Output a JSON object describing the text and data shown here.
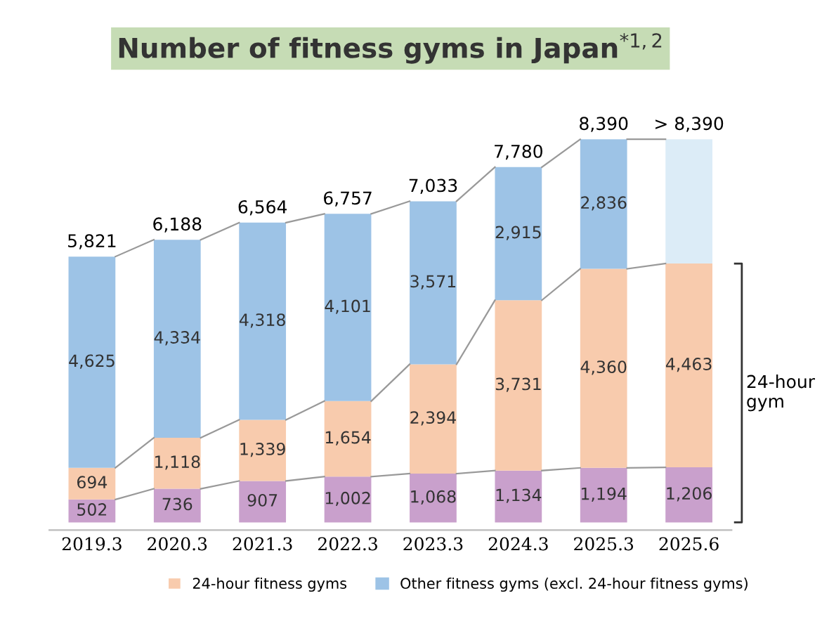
{
  "chart_data": {
    "type": "bar",
    "title": "Number of fitness gyms in Japan$^{*1,2}$",
    "stacked": true,
    "legend": "bottom",
    "grid": false,
    "categories": [
      "2019.3",
      "2020.3",
      "2021.3",
      "2022.3",
      "2023.3",
      "2024.3",
      "2025.3",
      "2025.6"
    ],
    "series": [
      {
        "color": "#c9a0cc",
        "values": [
          502,
          736,
          907,
          1002,
          1068,
          1134,
          1194,
          1206
        ],
        "value_labels": [
          "502",
          "736",
          "907",
          "1,002",
          "1,068",
          "1,134",
          "1,194",
          "1,206"
        ]
      },
      {
        "name": "24-hour fitness gyms",
        "color": "#f8cbad",
        "values": [
          694,
          1118,
          1339,
          1654,
          2394,
          3731,
          4360,
          4463
        ],
        "value_labels": [
          "694",
          "1,118",
          "1,339",
          "1,654",
          "2,394",
          "3,731",
          "4,360",
          "4,463"
        ]
      },
      {
        "name": "Other fitness gyms (excl. 24-hour fitness gyms)",
        "color": "#9dc3e6",
        "colors": [
          "#9dc3e6",
          "#9dc3e6",
          "#9dc3e6",
          "#9dc3e6",
          "#9dc3e6",
          "#9dc3e6",
          "#9dc3e6",
          "#dcecf7"
        ],
        "values": [
          4625,
          4334,
          4318,
          4101,
          3571,
          2915,
          2836,
          2721
        ],
        "value_labels": [
          "4,625",
          "4,334",
          "4,318",
          "4,101",
          "3,571",
          "2,915",
          "2,836",
          null
        ]
      }
    ],
    "totals": [
      "5,821",
      "6,188",
      "6,564",
      "6,757",
      "7,033",
      "7,780",
      "8,390",
      "> 8,390"
    ],
    "annotations": [
      "24-hour\ngym"
    ]
  }
}
